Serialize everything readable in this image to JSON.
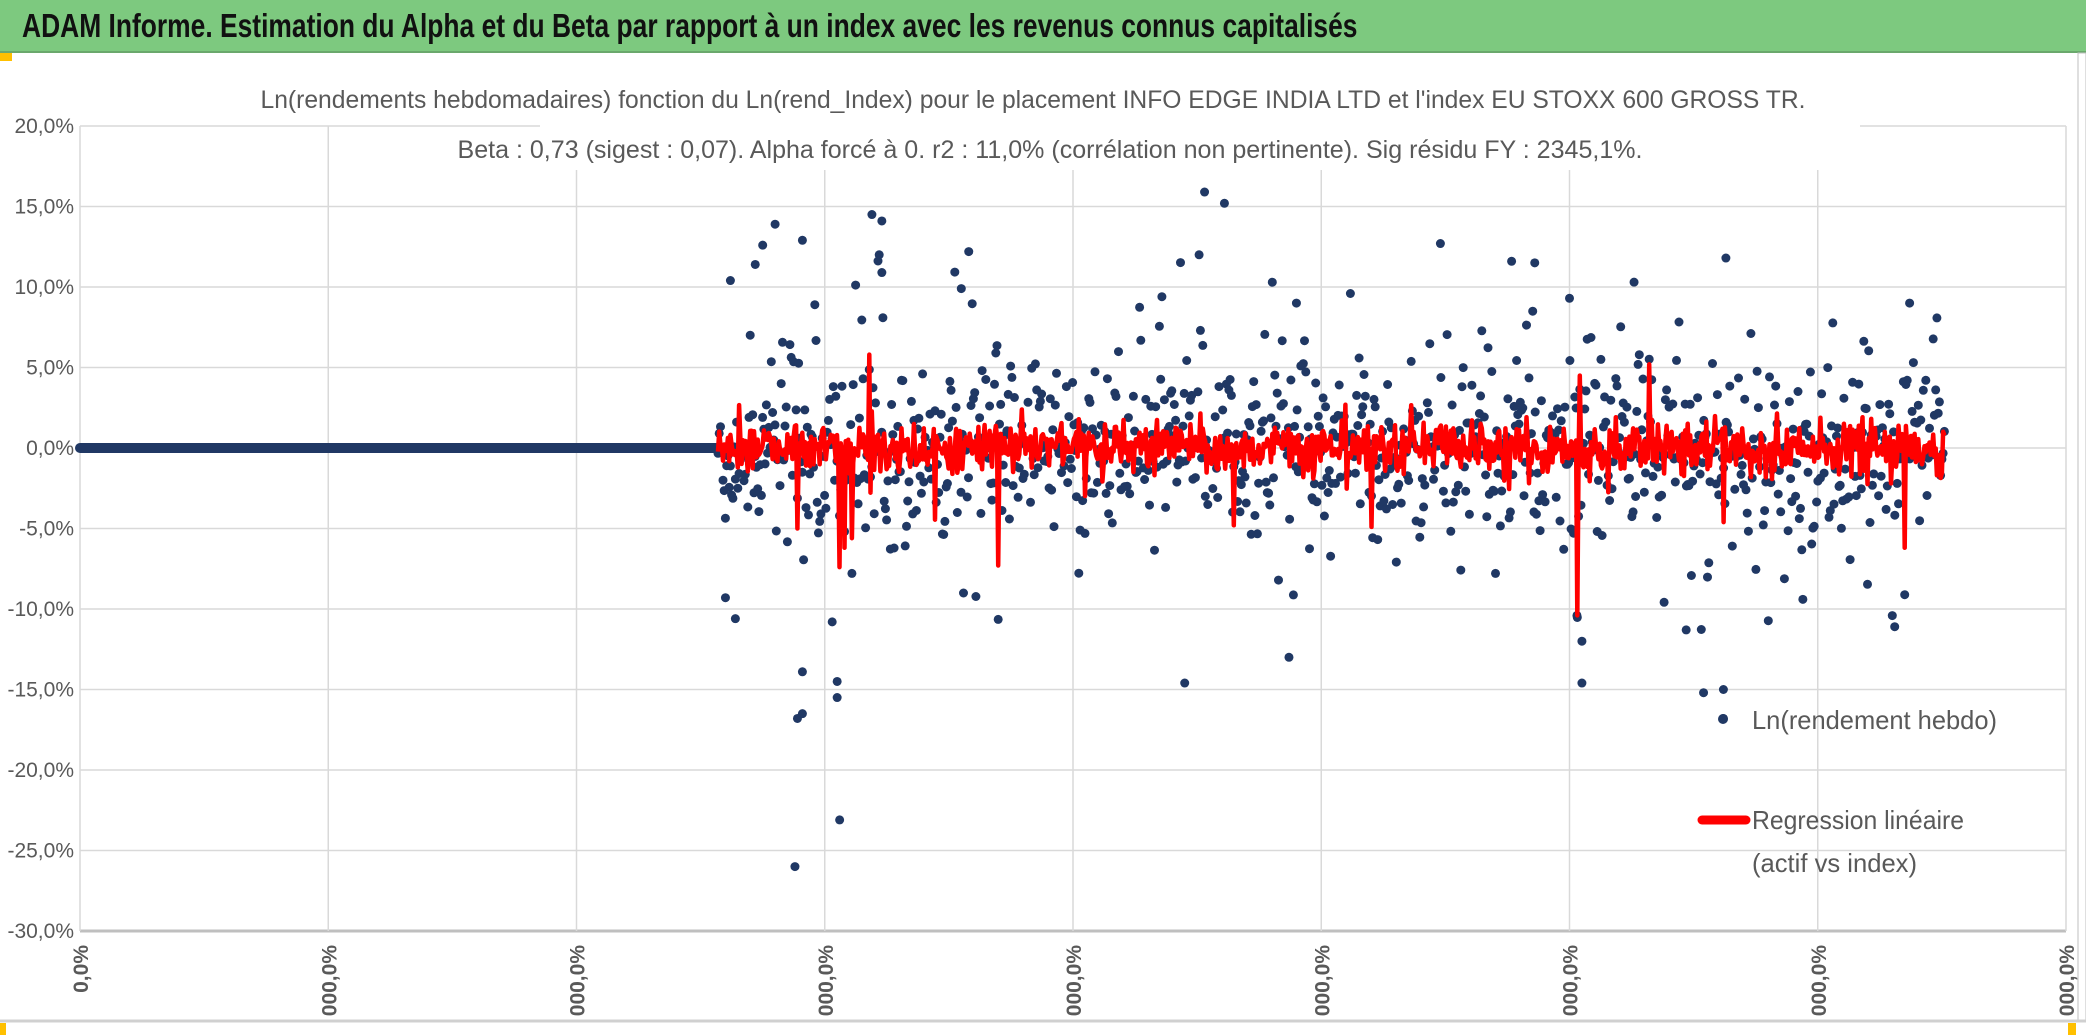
{
  "header": {
    "title": "ADAM Informe. Estimation du Alpha et du Beta par rapport à un index avec les revenus connus capitalisés"
  },
  "colors": {
    "header_bg": "#7dc97f",
    "scatter": "#203864",
    "regression": "#ff0000",
    "grid": "#d9d9d9",
    "accent": "#ffc000"
  },
  "chart_data": {
    "type": "scatter",
    "title": "Ln(rendements hebdomadaires) fonction du Ln(rend_Index) pour le placement INFO EDGE INDIA LTD et l'index EU STOXX 600 GROSS TR.",
    "subtitle": "Beta : 0,73 (sigest : 0,07). Alpha forcé à 0. r2 : 11,0% (corrélation non pertinente). Sig résidu FY : 2345,1%.",
    "beta": 0.73,
    "ylim": [
      -30,
      20
    ],
    "yticks": [
      20,
      15,
      10,
      5,
      0,
      -5,
      -10,
      -15,
      -20,
      -25,
      -30
    ],
    "ytick_labels": [
      "20,0%",
      "15,0%",
      "10,0%",
      "5,0%",
      "0,0%",
      "-5,0%",
      "-10,0%",
      "-15,0%",
      "-20,0%",
      "-25,0%",
      "-30,0%"
    ],
    "xlim": [
      0,
      800
    ],
    "xtick_labels": [
      "0,0%",
      "000,0%",
      "000,0%",
      "000,0%",
      "000,0%",
      "000,0%",
      "000,0%",
      "000,0%",
      "000,0%"
    ],
    "grid": true,
    "legend": {
      "placement": "bottom-right",
      "entries": [
        "Ln(rendement hebdo)",
        "Regression linéaire",
        "(actif vs index)"
      ]
    },
    "series": [
      {
        "name": "Ln(rendement hebdo)",
        "kind": "scatter",
        "flat_segment": [
          0,
          257
        ],
        "dense_range": [
          257,
          751
        ],
        "dense_count": 990,
        "dense_sigma": 3.3,
        "outliers": [
          [
            288,
            -26
          ],
          [
            306,
            -23.1
          ],
          [
            289,
            -16.8
          ],
          [
            291,
            -16.5
          ],
          [
            291,
            -13.9
          ],
          [
            305,
            -15.5
          ],
          [
            305,
            -14.5
          ],
          [
            303,
            -10.8
          ],
          [
            260,
            -9.3
          ],
          [
            264,
            -10.6
          ],
          [
            280,
            13.9
          ],
          [
            275,
            12.6
          ],
          [
            291,
            12.9
          ],
          [
            319,
            14.5
          ],
          [
            323,
            14.1
          ],
          [
            323,
            10.9
          ],
          [
            358,
            12.2
          ],
          [
            453,
            15.9
          ],
          [
            461,
            15.2
          ],
          [
            445,
            -14.6
          ],
          [
            487,
            -13
          ],
          [
            548,
            12.7
          ],
          [
            605,
            -14.6
          ],
          [
            605,
            -12
          ],
          [
            663,
            11.8
          ],
          [
            647,
            -11.3
          ],
          [
            654,
            -15.2
          ],
          [
            662,
            -16.8
          ],
          [
            662,
            -15
          ],
          [
            694,
            -9.4
          ],
          [
            731,
            -11.1
          ],
          [
            737,
            9
          ],
          [
            586,
            11.5
          ],
          [
            626,
            10.3
          ],
          [
            262,
            10.4
          ],
          [
            603,
            -10.4
          ],
          [
            272,
            11.4
          ],
          [
            296,
            8.9
          ],
          [
            355,
            9.9
          ],
          [
            490,
            9
          ],
          [
            600,
            9.3
          ]
        ]
      },
      {
        "name": "Regression linéaire (actif vs index)",
        "kind": "line",
        "index_sigma": 1.0,
        "spikes": [
          [
            306,
            -7.4
          ],
          [
            308,
            -6.2
          ],
          [
            318,
            5.8
          ],
          [
            311,
            -5.6
          ],
          [
            370,
            -7.3
          ],
          [
            289,
            -5
          ],
          [
            603,
            -10.4
          ],
          [
            604,
            4.5
          ],
          [
            632,
            5.2
          ],
          [
            735,
            -6.2
          ],
          [
            662,
            -4.6
          ],
          [
            520,
            -4.9
          ],
          [
            465,
            -4.8
          ]
        ]
      }
    ]
  }
}
